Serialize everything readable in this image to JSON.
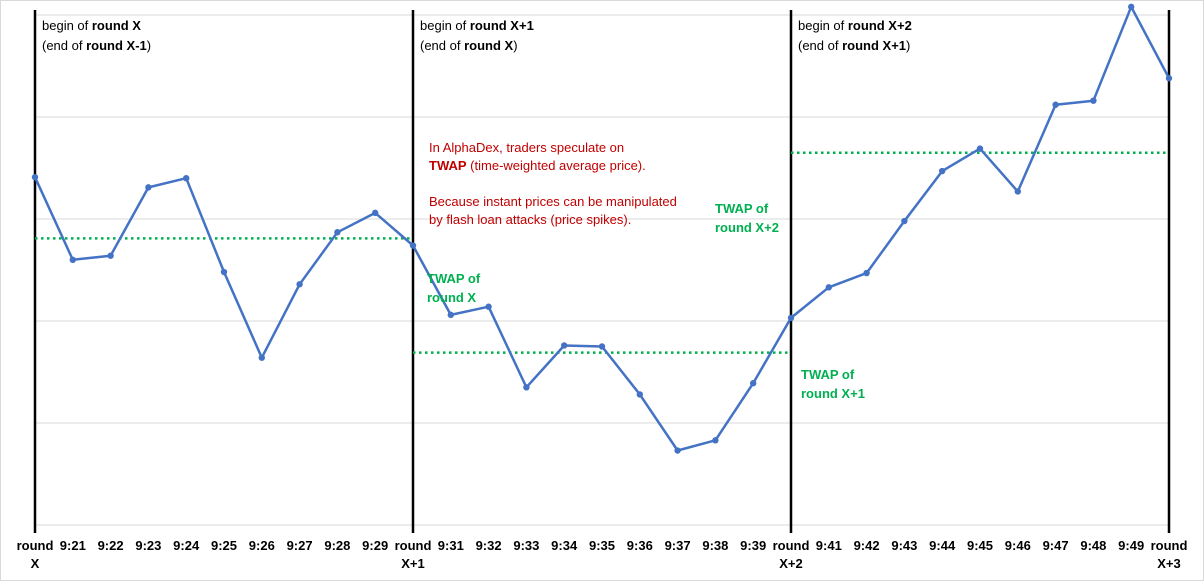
{
  "chart_data": {
    "type": "line",
    "title": "",
    "xlabel": "",
    "ylabel": "",
    "ylim": [
      0,
      5
    ],
    "grid": "horizontal",
    "line_color": "#4472C4",
    "twap_color": "#00B050",
    "note_color": "#C00000",
    "x_labels": [
      [
        "round",
        "X"
      ],
      [
        "9:21"
      ],
      [
        "9:22"
      ],
      [
        "9:23"
      ],
      [
        "9:24"
      ],
      [
        "9:25"
      ],
      [
        "9:26"
      ],
      [
        "9:27"
      ],
      [
        "9:28"
      ],
      [
        "9:29"
      ],
      [
        "round",
        "X+1"
      ],
      [
        "9:31"
      ],
      [
        "9:32"
      ],
      [
        "9:33"
      ],
      [
        "9:34"
      ],
      [
        "9:35"
      ],
      [
        "9:36"
      ],
      [
        "9:37"
      ],
      [
        "9:38"
      ],
      [
        "9:39"
      ],
      [
        "round",
        "X+2"
      ],
      [
        "9:41"
      ],
      [
        "9:42"
      ],
      [
        "9:43"
      ],
      [
        "9:44"
      ],
      [
        "9:45"
      ],
      [
        "9:46"
      ],
      [
        "9:47"
      ],
      [
        "9:48"
      ],
      [
        "9:49"
      ],
      [
        "round",
        "X+3"
      ]
    ],
    "series": [
      {
        "values": [
          3.41,
          2.6,
          2.64,
          3.31,
          3.4,
          2.48,
          1.64,
          2.36,
          2.87,
          3.06,
          2.74,
          2.06,
          2.14,
          1.35,
          1.76,
          1.75,
          1.28,
          0.73,
          0.83,
          1.39,
          2.03,
          2.33,
          2.47,
          2.98,
          3.47,
          3.69,
          3.27,
          4.12,
          4.16,
          5.08,
          4.38
        ]
      }
    ],
    "round_boundaries": [
      0,
      10,
      20
    ],
    "twap": [
      {
        "from": 0,
        "to": 10,
        "value": 2.81,
        "label_lines": [
          "TWAP of",
          "round X"
        ]
      },
      {
        "from": 10,
        "to": 20,
        "value": 1.69,
        "label_lines": [
          "TWAP of",
          "round X+1"
        ]
      },
      {
        "from": 20,
        "to": 30,
        "value": 3.65,
        "label_lines": [
          "TWAP of",
          "round X+2"
        ]
      }
    ],
    "round_labels": [
      {
        "line1_prefix": "begin of ",
        "line1_bold": "round X",
        "line2_prefix": "(end of ",
        "line2_bold": "round X-1",
        "line2_suffix": ")"
      },
      {
        "line1_prefix": "begin of ",
        "line1_bold": "round X+1",
        "line2_prefix": "(end of ",
        "line2_bold": "round X",
        "line2_suffix": ")"
      },
      {
        "line1_prefix": "begin of ",
        "line1_bold": "round X+2",
        "line2_prefix": "(end of ",
        "line2_bold": "round X+1",
        "line2_suffix": ")"
      }
    ],
    "annotations": {
      "note1_prefix": "In AlphaDex, traders speculate on",
      "note1_bold": "TWAP",
      "note1_suffix": " (time-weighted average price).",
      "note2_line1": "Because instant prices can be manipulated",
      "note2_line2": "by flash loan attacks (price spikes)."
    }
  }
}
